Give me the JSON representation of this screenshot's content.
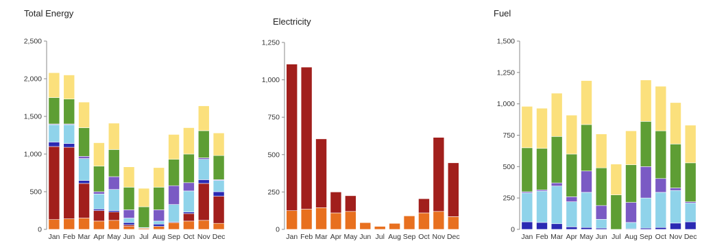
{
  "colors": {
    "dark_blue": "#2a2ab3",
    "light_blue": "#8fd3ea",
    "purple": "#7a5ac4",
    "green": "#5e9e34",
    "yellow": "#fbe07c",
    "dark_red": "#a11f1c",
    "orange": "#e8701f",
    "axis": "#888888"
  },
  "chart_data": [
    {
      "type": "bar",
      "stacked": true,
      "title": "Total Energy",
      "categories": [
        "Jan",
        "Feb",
        "Mar",
        "Apr",
        "May",
        "Jun",
        "Jul",
        "Aug",
        "Sep",
        "Oct",
        "Nov",
        "Dec"
      ],
      "ylim": [
        0,
        2500
      ],
      "yticks": [
        0,
        500,
        1000,
        1500,
        2000,
        2500
      ],
      "ytick_labels": [
        "0",
        "500",
        "1,000",
        "1,500",
        "2,000",
        "2,500"
      ],
      "grid": false,
      "series": [
        {
          "color": "#e8701f",
          "values": [
            130,
            140,
            150,
            110,
            120,
            40,
            15,
            40,
            90,
            110,
            120,
            80
          ]
        },
        {
          "color": "#a11f1c",
          "values": [
            970,
            950,
            460,
            140,
            110,
            20,
            0,
            0,
            0,
            100,
            490,
            360
          ]
        },
        {
          "color": "#2a2ab3",
          "values": [
            60,
            50,
            40,
            20,
            20,
            30,
            0,
            30,
            10,
            20,
            50,
            60
          ]
        },
        {
          "color": "#8fd3ea",
          "values": [
            230,
            250,
            290,
            200,
            280,
            60,
            10,
            40,
            230,
            280,
            270,
            150
          ]
        },
        {
          "color": "#7a5ac4",
          "values": [
            10,
            10,
            30,
            30,
            170,
            110,
            0,
            150,
            250,
            110,
            20,
            10
          ]
        },
        {
          "color": "#5e9e34",
          "values": [
            350,
            330,
            380,
            340,
            360,
            300,
            275,
            300,
            350,
            380,
            360,
            320
          ]
        },
        {
          "color": "#fbe07c",
          "values": [
            330,
            320,
            340,
            310,
            350,
            270,
            245,
            260,
            330,
            350,
            330,
            300
          ]
        }
      ]
    },
    {
      "type": "bar",
      "stacked": true,
      "title": "Electricity",
      "categories": [
        "Jan",
        "Feb",
        "Mar",
        "Apr",
        "May",
        "Jun",
        "Jul",
        "Aug",
        "Sep",
        "Oct",
        "Nov",
        "Dec"
      ],
      "ylim": [
        0,
        1250
      ],
      "yticks": [
        0,
        250,
        500,
        750,
        1000,
        1250
      ],
      "ytick_labels": [
        "0",
        "250",
        "500",
        "750",
        "1,000",
        "1,250"
      ],
      "grid": false,
      "series": [
        {
          "color": "#e8701f",
          "values": [
            125,
            135,
            145,
            110,
            120,
            45,
            20,
            40,
            90,
            110,
            120,
            85
          ]
        },
        {
          "color": "#a11f1c",
          "values": [
            980,
            950,
            460,
            140,
            105,
            0,
            0,
            0,
            0,
            95,
            495,
            360
          ]
        }
      ]
    },
    {
      "type": "bar",
      "stacked": true,
      "title": "Fuel",
      "categories": [
        "Jan",
        "Feb",
        "Mar",
        "Apr",
        "May",
        "Jun",
        "Jul",
        "Aug",
        "Sep",
        "Oct",
        "Nov",
        "Dec"
      ],
      "ylim": [
        0,
        1500
      ],
      "yticks": [
        0,
        250,
        500,
        750,
        1000,
        1250,
        1500
      ],
      "ytick_labels": [
        "0",
        "250",
        "500",
        "750",
        "1,000",
        "1,250",
        "1,500"
      ],
      "grid": false,
      "series": [
        {
          "color": "#2a2ab3",
          "values": [
            60,
            55,
            45,
            20,
            15,
            10,
            0,
            5,
            10,
            15,
            50,
            60
          ]
        },
        {
          "color": "#8fd3ea",
          "values": [
            230,
            250,
            300,
            200,
            280,
            70,
            0,
            50,
            240,
            280,
            260,
            150
          ]
        },
        {
          "color": "#7a5ac4",
          "values": [
            10,
            10,
            25,
            40,
            170,
            110,
            0,
            160,
            250,
            110,
            20,
            10
          ]
        },
        {
          "color": "#5e9e34",
          "values": [
            350,
            330,
            370,
            340,
            370,
            300,
            275,
            300,
            360,
            380,
            350,
            310
          ]
        },
        {
          "color": "#fbe07c",
          "values": [
            330,
            320,
            345,
            310,
            350,
            270,
            245,
            270,
            330,
            355,
            330,
            300
          ]
        }
      ]
    }
  ]
}
